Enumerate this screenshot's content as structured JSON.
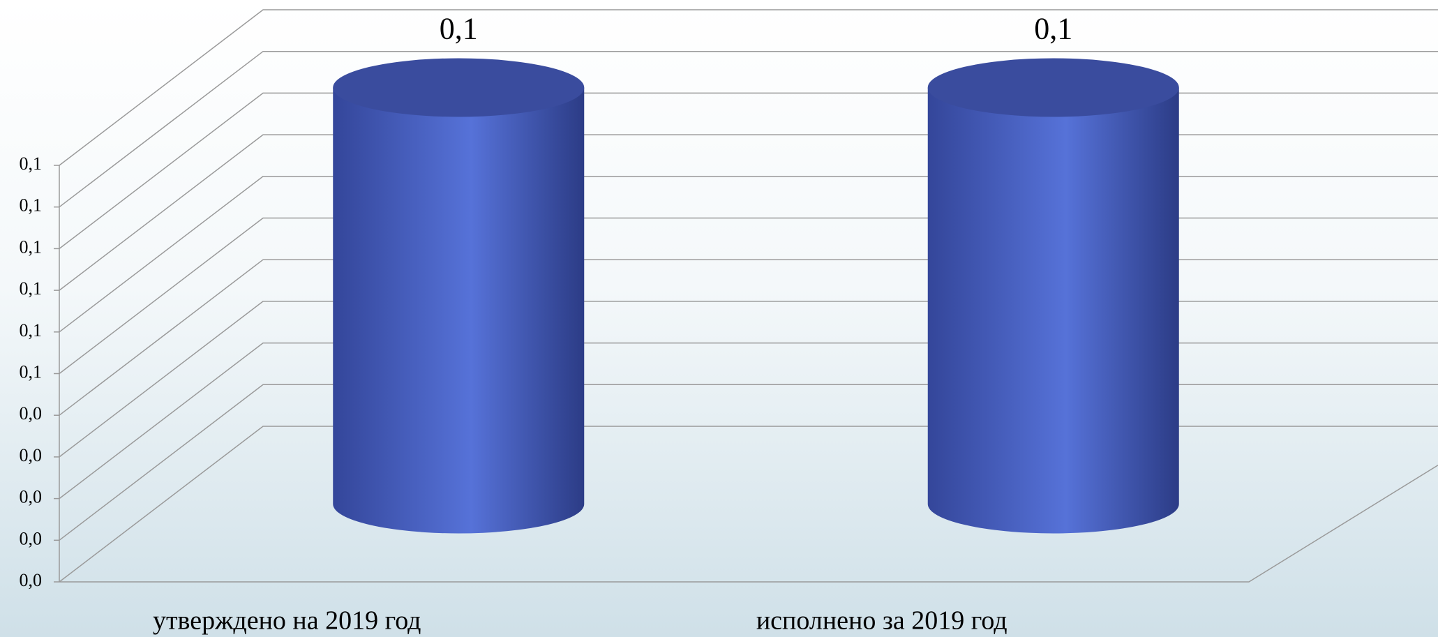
{
  "chart_data": {
    "type": "bar3d-cylinder",
    "categories": [
      "утверждено на 2019 год",
      "исполнено за 2019 год"
    ],
    "values": [
      0.1,
      0.1
    ],
    "value_labels": [
      "0,1",
      "0,1"
    ],
    "color": "#4a63c8",
    "ylim": [
      0,
      0.1
    ],
    "yticks": [
      {
        "value": 0,
        "label": "0,0"
      },
      {
        "value": 0.01,
        "label": "0,0"
      },
      {
        "value": 0.02,
        "label": "0,0"
      },
      {
        "value": 0.03,
        "label": "0,0"
      },
      {
        "value": 0.04,
        "label": "0,0"
      },
      {
        "value": 0.05,
        "label": "0,1"
      },
      {
        "value": 0.06,
        "label": "0,1"
      },
      {
        "value": 0.07,
        "label": "0,1"
      },
      {
        "value": 0.08,
        "label": "0,1"
      },
      {
        "value": 0.09,
        "label": "0,1"
      },
      {
        "value": 0.1,
        "label": "0,1"
      }
    ],
    "grid": true
  }
}
